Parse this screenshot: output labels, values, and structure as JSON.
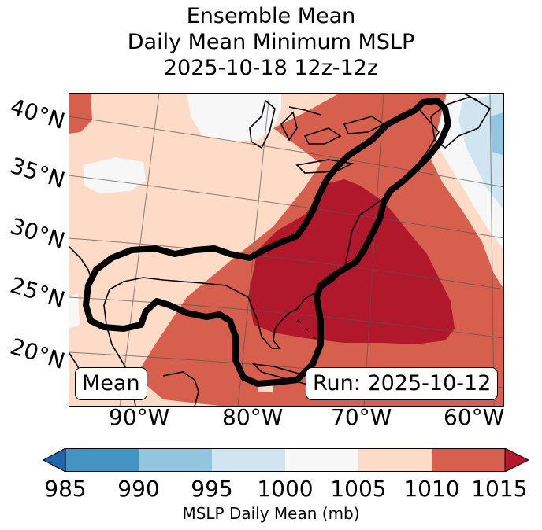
{
  "title": {
    "line1": "Ensemble Mean",
    "line2": "Daily Mean Minimum MSLP",
    "line3": "2025-10-18 12z-12z"
  },
  "latitude_labels": [
    "40°N",
    "35°N",
    "30°N",
    "25°N",
    "20°N"
  ],
  "longitude_labels": [
    "90°W",
    "80°W",
    "70°W",
    "60°W"
  ],
  "inset": {
    "left_label": "Mean",
    "right_label": "Run: 2025-10-12"
  },
  "colorbar": {
    "ticks": [
      "985",
      "990",
      "995",
      "1000",
      "1005",
      "1010",
      "1015"
    ],
    "label": "MSLP Daily Mean (mb)",
    "colors": [
      "#2166ac",
      "#4393c3",
      "#92c5de",
      "#d1e5f0",
      "#f7f7f7",
      "#fddbc7",
      "#d6604d",
      "#b2182b"
    ]
  },
  "map_colors": {
    "band_1000_1005": "#f7f7f7",
    "band_1005_1010": "#fddbc7",
    "band_1010_1015": "#d6604d",
    "band_above_1015": "#b2182b",
    "band_995_1000": "#d1e5f0",
    "band_990_995": "#92c5de"
  }
}
